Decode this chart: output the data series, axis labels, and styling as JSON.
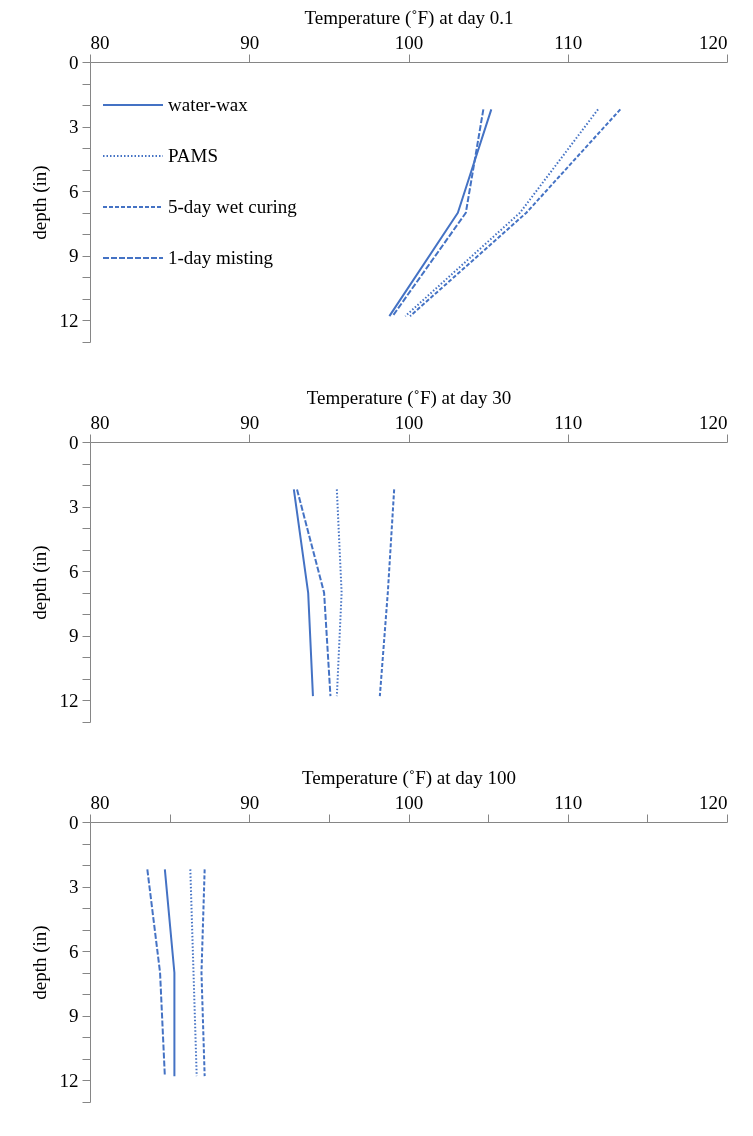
{
  "chart_data": [
    {
      "type": "line",
      "xlabel": "Temperature (˚F) at day 0.1",
      "ylabel": "depth (in)",
      "xlim": [
        80,
        120
      ],
      "xticks": [
        80,
        90,
        100,
        110,
        120
      ],
      "ylim": [
        13,
        0
      ],
      "yticks": [
        0,
        {
          "value": 1,
          "label": null
        },
        {
          "value": 2,
          "label": null
        },
        3,
        {
          "value": 4,
          "label": null
        },
        {
          "value": 5,
          "label": null
        },
        6,
        {
          "value": 7,
          "label": null
        },
        {
          "value": 8,
          "label": null
        },
        9,
        {
          "value": 10,
          "label": null
        },
        {
          "value": 11,
          "label": null
        },
        12,
        {
          "value": 13,
          "label": null
        }
      ],
      "grid": false,
      "legend": "top left",
      "marker": "none",
      "series": [
        {
          "name": "water-wax",
          "color": "#4472c4",
          "line_style": "solid",
          "x": [
            105.2,
            103.1,
            98.8
          ],
          "values": [
            2.2,
            7,
            11.8
          ]
        },
        {
          "name": "PAMS",
          "color": "#4472c4",
          "line_style": "dotted",
          "x": [
            111.9,
            107.0,
            99.8
          ],
          "values": [
            2.2,
            7,
            11.8
          ]
        },
        {
          "name": "5-day wet curing",
          "color": "#4472c4",
          "line_style": "dashed",
          "x": [
            113.3,
            107.4,
            100.1
          ],
          "values": [
            2.2,
            7,
            11.8
          ]
        },
        {
          "name": "1-day misting",
          "color": "#4472c4",
          "line_style": "dashed",
          "x": [
            104.7,
            103.6,
            99.0
          ],
          "values": [
            2.2,
            7,
            11.8
          ]
        }
      ]
    },
    {
      "type": "line",
      "xlabel": "Temperature (˚F) at day 30",
      "ylabel": "depth (in)",
      "xlim": [
        80,
        120
      ],
      "xticks": [
        80,
        90,
        100,
        110,
        120
      ],
      "ylim": [
        13,
        0
      ],
      "yticks": [
        0,
        {
          "value": 1,
          "label": null
        },
        {
          "value": 2,
          "label": null
        },
        3,
        {
          "value": 4,
          "label": null
        },
        {
          "value": 5,
          "label": null
        },
        6,
        {
          "value": 7,
          "label": null
        },
        {
          "value": 8,
          "label": null
        },
        9,
        {
          "value": 10,
          "label": null
        },
        {
          "value": 11,
          "label": null
        },
        12,
        {
          "value": 13,
          "label": null
        }
      ],
      "grid": false,
      "legend": false,
      "marker": "none",
      "series": [
        {
          "color": "#4472c4",
          "line_style": "solid",
          "x": [
            92.8,
            93.7,
            94.0
          ],
          "values": [
            2.2,
            7,
            11.8
          ]
        },
        {
          "color": "#4472c4",
          "line_style": "dotted",
          "x": [
            95.5,
            95.8,
            95.5
          ],
          "values": [
            2.2,
            7,
            11.8
          ]
        },
        {
          "color": "#4472c4",
          "line_style": "dashed",
          "x": [
            99.1,
            98.7,
            98.2
          ],
          "values": [
            2.2,
            7,
            11.8
          ]
        },
        {
          "color": "#4472c4",
          "line_style": "dashed",
          "x": [
            93.0,
            94.7,
            95.1
          ],
          "values": [
            2.2,
            7,
            11.8
          ]
        }
      ]
    },
    {
      "type": "line",
      "xlabel": "Temperature (˚F) at day 100",
      "ylabel": "depth (in)",
      "xlim": [
        80,
        120
      ],
      "xticks": [
        80,
        {
          "value": 85,
          "label": null
        },
        90,
        {
          "value": 95,
          "label": null
        },
        100,
        {
          "value": 105,
          "label": null
        },
        110,
        {
          "value": 115,
          "label": null
        },
        120
      ],
      "ylim": [
        13,
        0
      ],
      "yticks": [
        0,
        {
          "value": 1,
          "label": null
        },
        {
          "value": 2,
          "label": null
        },
        3,
        {
          "value": 4,
          "label": null
        },
        {
          "value": 5,
          "label": null
        },
        6,
        {
          "value": 7,
          "label": null
        },
        {
          "value": 8,
          "label": null
        },
        9,
        {
          "value": 10,
          "label": null
        },
        {
          "value": 11,
          "label": null
        },
        12,
        {
          "value": 13,
          "label": null
        }
      ],
      "grid": false,
      "legend": false,
      "marker": "none",
      "series": [
        {
          "color": "#4472c4",
          "line_style": "solid",
          "x": [
            84.7,
            85.3,
            85.3
          ],
          "values": [
            2.2,
            7,
            11.8
          ]
        },
        {
          "color": "#4472c4",
          "line_style": "dotted",
          "x": [
            86.3,
            86.5,
            86.7
          ],
          "values": [
            2.2,
            7,
            11.8
          ]
        },
        {
          "color": "#4472c4",
          "line_style": "dashed",
          "x": [
            87.2,
            87.0,
            87.2
          ],
          "values": [
            2.2,
            7,
            11.8
          ]
        },
        {
          "color": "#4472c4",
          "line_style": "dashed",
          "x": [
            83.6,
            84.4,
            84.7
          ],
          "values": [
            2.2,
            7,
            11.8
          ]
        }
      ]
    }
  ]
}
